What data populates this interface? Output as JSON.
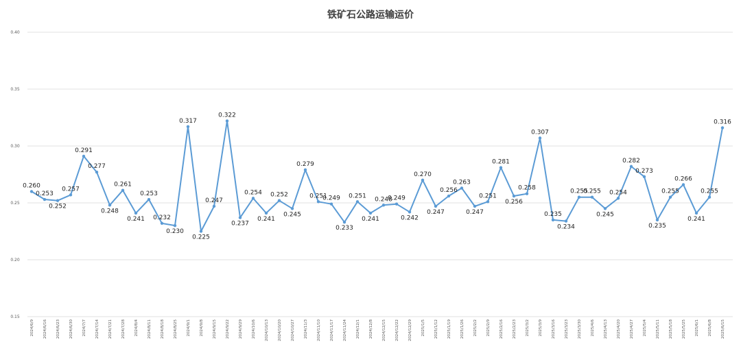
{
  "chart_data": {
    "type": "line",
    "title": "铁矿石公路运输运价",
    "ylim": [
      0.15,
      0.4
    ],
    "yticks": [
      "0.40",
      "0.35",
      "0.30",
      "0.25",
      "0.20",
      "0.15"
    ],
    "grid": true,
    "legend": "none",
    "line_color": "#5b9bd5",
    "x": [
      "2024/6/9",
      "2024/6/16",
      "2024/6/23",
      "2024/6/30",
      "2024/7/7",
      "2024/7/14",
      "2024/7/21",
      "2024/7/28",
      "2024/8/4",
      "2024/8/11",
      "2024/8/18",
      "2024/8/25",
      "2024/9/1",
      "2024/9/8",
      "2024/9/15",
      "2024/9/22",
      "2024/9/29",
      "2024/10/6",
      "2024/10/13",
      "2024/10/20",
      "2024/10/27",
      "2024/11/3",
      "2024/11/10",
      "2024/11/17",
      "2024/11/24",
      "2024/12/1",
      "2024/12/8",
      "2024/12/15",
      "2024/12/22",
      "2024/12/29",
      "2025/1/5",
      "2025/1/12",
      "2025/1/19",
      "2025/1/26",
      "2025/2/2",
      "2025/2/9",
      "2025/2/16",
      "2025/2/23",
      "2025/3/2",
      "2025/3/9",
      "2025/3/16",
      "2025/3/23",
      "2025/3/30",
      "2025/4/6",
      "2025/4/13",
      "2025/4/20",
      "2025/4/27",
      "2025/5/4",
      "2025/5/11",
      "2025/5/18",
      "2025/5/25",
      "2025/6/1",
      "2025/6/8",
      "2025/6/15"
    ],
    "values": [
      0.26,
      0.253,
      0.252,
      0.257,
      0.291,
      0.277,
      0.248,
      0.261,
      0.241,
      0.253,
      0.232,
      0.23,
      0.317,
      0.225,
      0.247,
      0.322,
      0.237,
      0.254,
      0.241,
      0.252,
      0.245,
      0.279,
      0.251,
      0.249,
      0.233,
      0.251,
      0.241,
      0.248,
      0.249,
      0.242,
      0.27,
      0.247,
      0.256,
      0.263,
      0.247,
      0.251,
      0.281,
      0.256,
      0.258,
      0.307,
      0.235,
      0.234,
      0.255,
      0.255,
      0.245,
      0.254,
      0.282,
      0.273,
      0.235,
      0.255,
      0.266,
      0.241,
      0.255,
      0.316
    ],
    "labels": [
      "0.260",
      "0.253",
      "0.252",
      "0.257",
      "0.291",
      "0.277",
      "0.248",
      "0.261",
      "0.241",
      "0.253",
      "0.232",
      "0.230",
      "0.317",
      "0.225",
      "0.247",
      "0.322",
      "0.237",
      "0.254",
      "0.241",
      "0.252",
      "0.245",
      "0.279",
      "0.251",
      "0.249",
      "0.233",
      "0.251",
      "0.241",
      "0.248",
      "0.249",
      "0.242",
      "0.270",
      "0.247",
      "0.256",
      "0.263",
      "0.247",
      "0.251",
      "0.281",
      "0.256",
      "0.258",
      "0.307",
      "0.235",
      "0.234",
      "0.255",
      "0.255",
      "0.245",
      "0.254",
      "0.282",
      "0.273",
      "0.235",
      "0.255",
      "0.266",
      "0.241",
      "0.255",
      "0.316"
    ]
  }
}
